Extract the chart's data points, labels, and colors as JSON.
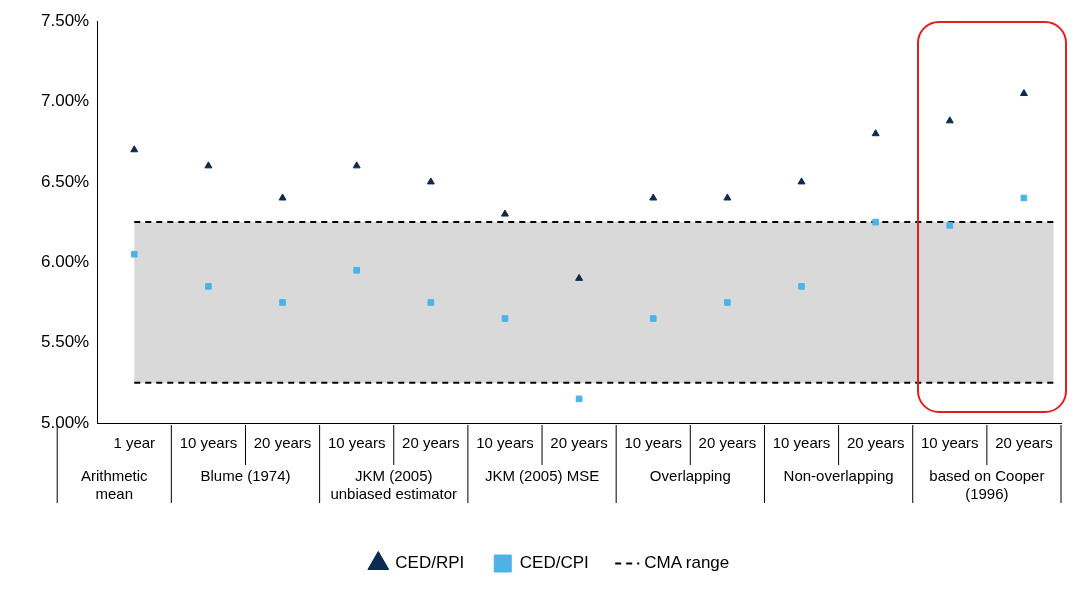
{
  "chart_data": {
    "type": "scatter",
    "categories": [
      "1 year",
      "10 years",
      "20 years",
      "10 years",
      "20 years",
      "10 years",
      "20 years",
      "10 years",
      "20 years",
      "10 years",
      "20 years",
      "10 years",
      "20 years"
    ],
    "series": [
      {
        "name": "CED/RPI",
        "color": "#0d2a52",
        "marker": "triangle",
        "values": [
          6.7,
          6.6,
          6.4,
          6.6,
          6.5,
          6.3,
          5.9,
          6.4,
          6.4,
          6.5,
          6.8,
          6.88,
          7.05
        ]
      },
      {
        "name": "CED/CPI",
        "color": "#4db3e6",
        "marker": "square",
        "values": [
          6.05,
          5.85,
          5.75,
          5.95,
          5.75,
          5.65,
          5.15,
          5.65,
          5.75,
          5.85,
          6.25,
          6.23,
          6.4
        ]
      }
    ],
    "bands": [
      {
        "axis": "y",
        "from": 5.25,
        "to": 6.25,
        "color": "#d9d9d9"
      }
    ],
    "ref_lines": [
      {
        "axis": "y",
        "value": 6.25,
        "label": "CMA range",
        "color": "#000000",
        "line_style": "dashed"
      },
      {
        "axis": "y",
        "value": 5.25,
        "color": "#000000",
        "line_style": "dashed"
      }
    ],
    "annotations": [
      "Arithmetic mean",
      "Blume (1974)",
      "JKM (2005) unbiased estimator",
      "JKM (2005) MSE",
      "Overlapping",
      "Non-overlapping",
      "based on Cooper (1996)"
    ],
    "ylim": [
      5,
      7.5
    ],
    "yticks": [
      {
        "value": 5,
        "label": "5.00%"
      },
      {
        "value": 5.5,
        "label": "5.50%"
      },
      {
        "value": 6,
        "label": "6.00%"
      },
      {
        "value": 6.5,
        "label": "6.50%"
      },
      {
        "value": 7,
        "label": "7.00%"
      },
      {
        "value": 7.5,
        "label": "7.50%"
      }
    ],
    "grid": false,
    "legend": "bottom"
  }
}
